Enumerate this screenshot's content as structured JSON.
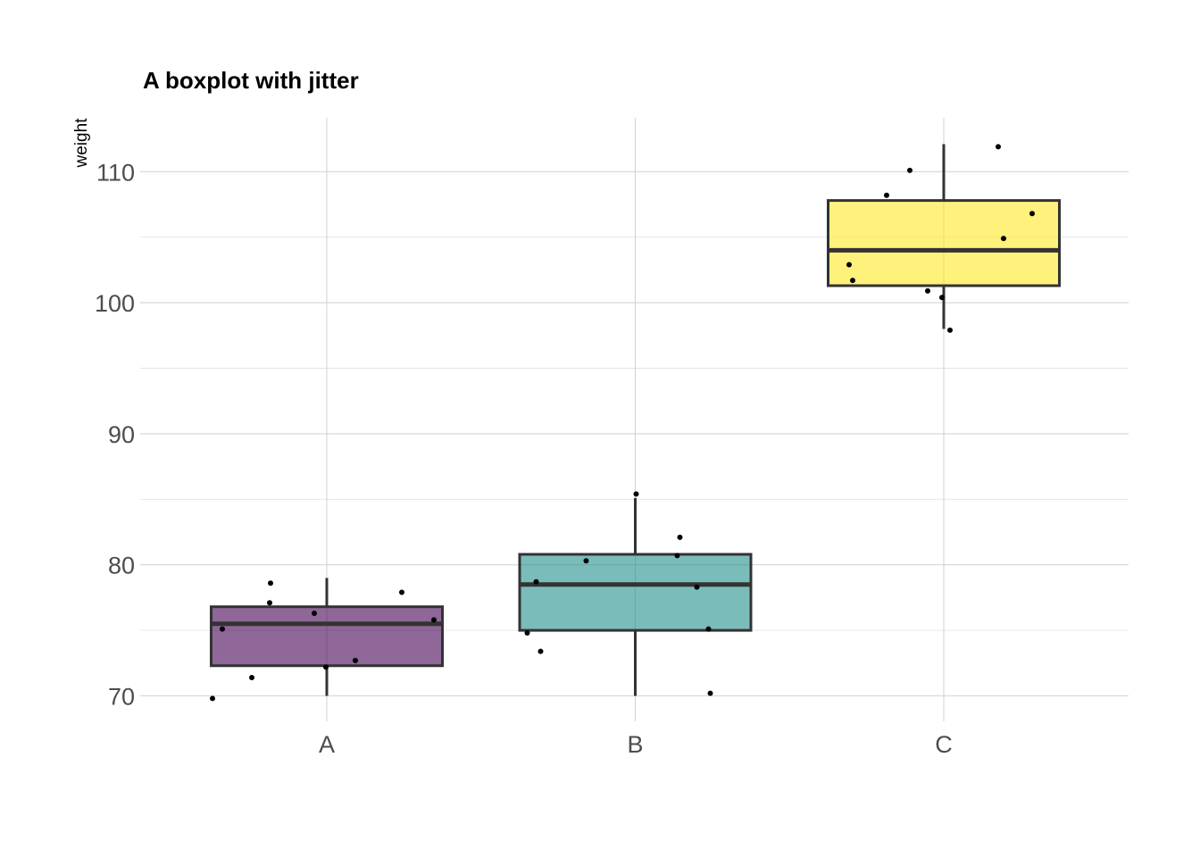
{
  "chart_data": {
    "type": "boxplot",
    "title": "A boxplot with jitter",
    "xlabel": "",
    "ylabel": "weight",
    "ylim": [
      68.2,
      114.1
    ],
    "yticks": [
      70,
      80,
      90,
      100,
      110
    ],
    "categories": [
      "A",
      "B",
      "C"
    ],
    "grid": true,
    "legend": "none",
    "series": [
      {
        "category": "A",
        "color": "#440154",
        "whisker_low": 70.0,
        "q1": 72.3,
        "median": 75.5,
        "q3": 76.8,
        "whisker_high": 79.0,
        "points": [
          {
            "x": "A",
            "y": 69.8
          },
          {
            "x": "A",
            "y": 75.1
          },
          {
            "x": "A",
            "y": 71.4
          },
          {
            "x": "A",
            "y": 78.6
          },
          {
            "x": "A",
            "y": 77.1
          },
          {
            "x": "A",
            "y": 76.3
          },
          {
            "x": "A",
            "y": 72.2
          },
          {
            "x": "A",
            "y": 72.7
          },
          {
            "x": "A",
            "y": 77.9
          },
          {
            "x": "A",
            "y": 75.8
          }
        ]
      },
      {
        "category": "B",
        "color": "#21908C",
        "whisker_low": 70.0,
        "q1": 75.0,
        "median": 78.5,
        "q3": 80.8,
        "whisker_high": 85.1,
        "points": [
          {
            "x": "B",
            "y": 74.8
          },
          {
            "x": "B",
            "y": 78.7
          },
          {
            "x": "B",
            "y": 73.4
          },
          {
            "x": "B",
            "y": 80.3
          },
          {
            "x": "B",
            "y": 85.4
          },
          {
            "x": "B",
            "y": 82.1
          },
          {
            "x": "B",
            "y": 80.7
          },
          {
            "x": "B",
            "y": 78.3
          },
          {
            "x": "B",
            "y": 75.1
          },
          {
            "x": "B",
            "y": 70.2
          }
        ]
      },
      {
        "category": "C",
        "color": "#FDE725",
        "whisker_low": 98.0,
        "q1": 101.3,
        "median": 104.0,
        "q3": 107.8,
        "whisker_high": 112.1,
        "points": [
          {
            "x": "C",
            "y": 102.9
          },
          {
            "x": "C",
            "y": 101.7
          },
          {
            "x": "C",
            "y": 108.2
          },
          {
            "x": "C",
            "y": 110.1
          },
          {
            "x": "C",
            "y": 100.9
          },
          {
            "x": "C",
            "y": 100.4
          },
          {
            "x": "C",
            "y": 97.9
          },
          {
            "x": "C",
            "y": 111.9
          },
          {
            "x": "C",
            "y": 104.9
          },
          {
            "x": "C",
            "y": 106.8
          }
        ]
      }
    ]
  }
}
